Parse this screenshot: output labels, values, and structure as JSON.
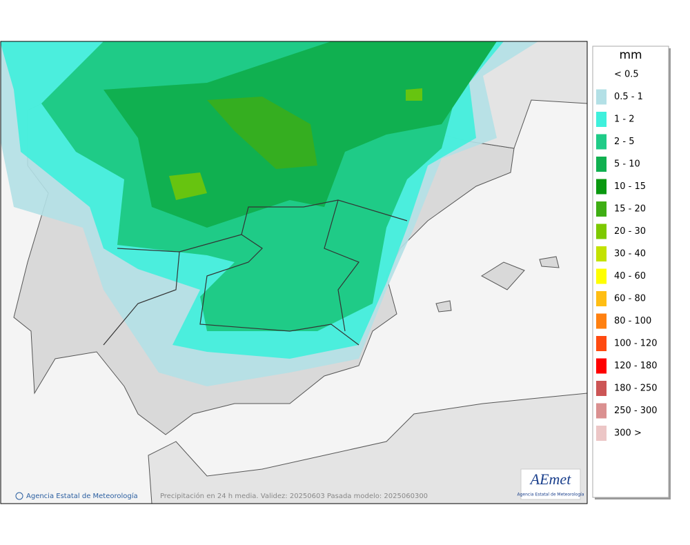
{
  "legend": {
    "title": "mm",
    "items": [
      {
        "label": "< 0.5"
      },
      {
        "label": "0.5 - 1",
        "color": "#b3e0e6"
      },
      {
        "label": "1 - 2",
        "color": "#3ff0dc"
      },
      {
        "label": "2 - 5",
        "color": "#1fcb87"
      },
      {
        "label": "5 - 10",
        "color": "#10b050"
      },
      {
        "label": "10 - 15",
        "color": "#0a9810"
      },
      {
        "label": "15 - 20",
        "color": "#3fae14"
      },
      {
        "label": "20 - 30",
        "color": "#7dc900"
      },
      {
        "label": "30 - 40",
        "color": "#c3e200"
      },
      {
        "label": "40 - 60",
        "color": "#ffff00"
      },
      {
        "label": "60 - 80",
        "color": "#ffbe14"
      },
      {
        "label": "80 - 100",
        "color": "#ff8010"
      },
      {
        "label": "100 - 120",
        "color": "#ff4a10"
      },
      {
        "label": "120 - 180",
        "color": "#ff0000"
      },
      {
        "label": "180 - 250",
        "color": "#cc5555"
      },
      {
        "label": "250 - 300",
        "color": "#da9090"
      },
      {
        "label": "300 >",
        "color": "#ecc6c6"
      }
    ]
  },
  "footer": {
    "credit": "Agencia Estatal de Meteorología",
    "caption": "Precipitación en 24 h media. Validez: 20250603 Pasada modelo: 2025060300"
  },
  "logo": {
    "name": "AEmet",
    "subtitle": "Agencia Estatal de Meteorología"
  }
}
